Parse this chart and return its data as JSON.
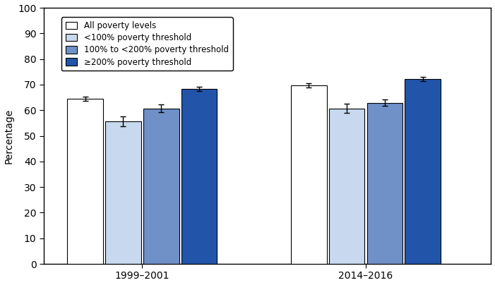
{
  "groups": [
    "1999–2001",
    "2014–2016"
  ],
  "categories": [
    "All poverty levels",
    "<100% poverty threshold",
    "100% to <200% poverty threshold",
    "≥200% poverty threshold"
  ],
  "values": [
    [
      64.4,
      55.7,
      60.7,
      68.3
    ],
    [
      69.7,
      60.7,
      62.9,
      72.2
    ]
  ],
  "errors": [
    [
      0.8,
      2.0,
      1.5,
      0.9
    ],
    [
      0.7,
      1.8,
      1.2,
      0.7
    ]
  ],
  "bar_colors": [
    "#ffffff",
    "#c8d8ee",
    "#7090c8",
    "#2255aa"
  ],
  "bar_edge_color": "#000000",
  "ylabel": "Percentage",
  "ylim": [
    0,
    100
  ],
  "yticks": [
    0,
    10,
    20,
    30,
    40,
    50,
    60,
    70,
    80,
    90,
    100
  ],
  "bar_width": 0.08,
  "group_centers": [
    0.22,
    0.72
  ],
  "xlim": [
    0.0,
    1.0
  ],
  "figsize": [
    7.01,
    4.04
  ],
  "dpi": 100,
  "legend_labels": [
    "All poverty levels",
    "<100% poverty threshold",
    "100% to <200% poverty threshold",
    "≥200% poverty threshold"
  ]
}
